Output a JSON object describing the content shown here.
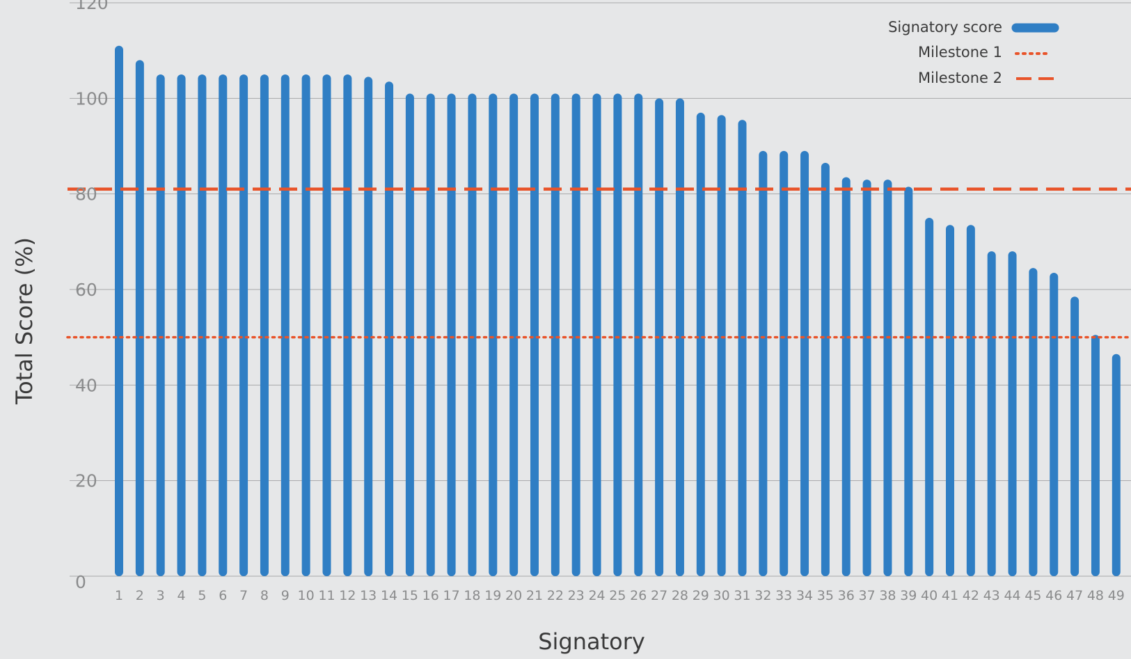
{
  "chart_data": {
    "type": "bar",
    "title": "",
    "xlabel": "Signatory",
    "ylabel": "Total Score (%)",
    "ylim": [
      0,
      120
    ],
    "yticks": [
      0,
      20,
      40,
      60,
      80,
      100,
      120
    ],
    "grid": true,
    "legend_position": "top-right",
    "categories": [
      "1",
      "2",
      "3",
      "4",
      "5",
      "6",
      "7",
      "8",
      "9",
      "10",
      "11",
      "12",
      "13",
      "14",
      "15",
      "16",
      "17",
      "18",
      "19",
      "20",
      "21",
      "22",
      "23",
      "24",
      "25",
      "26",
      "27",
      "28",
      "29",
      "30",
      "31",
      "32",
      "33",
      "34",
      "35",
      "36",
      "37",
      "38",
      "39",
      "40",
      "41",
      "42",
      "43",
      "44",
      "45",
      "46",
      "47",
      "48",
      "49"
    ],
    "series": [
      {
        "name": "Signatory score",
        "color": "#2f7ec4",
        "values": [
          111,
          108,
          105,
          105,
          105,
          105,
          105,
          105,
          105,
          105,
          105,
          105,
          104.5,
          103.5,
          101,
          101,
          101,
          101,
          101,
          101,
          101,
          101,
          101,
          101,
          101,
          101,
          100,
          100,
          97,
          96.5,
          95.5,
          89,
          89,
          89,
          86.5,
          83.5,
          83,
          83,
          81.5,
          75,
          73.5,
          73.5,
          68,
          68,
          64.5,
          63.5,
          58.5,
          50.5,
          46.5
        ]
      }
    ],
    "reference_lines": [
      {
        "name": "Milestone 1",
        "value": 50,
        "style": "dotted",
        "color": "#e8542a"
      },
      {
        "name": "Milestone 2",
        "value": 81,
        "style": "dashed",
        "color": "#e8542a"
      }
    ]
  }
}
